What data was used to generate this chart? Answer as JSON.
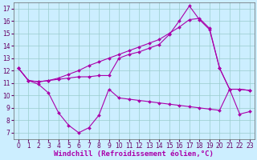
{
  "title": "",
  "xlabel": "Windchill (Refroidissement éolien,°C)",
  "ylabel": "",
  "bg_color": "#cceeff",
  "line_color": "#aa00aa",
  "grid_color": "#99cccc",
  "xlim": [
    -0.5,
    23.5
  ],
  "ylim": [
    6.5,
    17.5
  ],
  "xticks": [
    0,
    1,
    2,
    3,
    4,
    5,
    6,
    7,
    8,
    9,
    10,
    11,
    12,
    13,
    14,
    15,
    16,
    17,
    18,
    19,
    20,
    21,
    22,
    23
  ],
  "yticks": [
    7,
    8,
    9,
    10,
    11,
    12,
    13,
    14,
    15,
    16,
    17
  ],
  "curve_bottom_x": [
    0,
    1,
    2,
    3,
    4,
    5,
    6,
    7,
    8,
    9,
    10,
    11,
    12,
    13,
    14,
    15,
    16,
    17,
    18,
    19,
    20,
    21,
    22,
    23
  ],
  "curve_bottom_y": [
    12.2,
    11.2,
    10.9,
    10.2,
    8.6,
    7.6,
    7.0,
    7.4,
    8.4,
    10.5,
    9.8,
    9.7,
    9.6,
    9.5,
    9.4,
    9.3,
    9.2,
    9.1,
    9.0,
    8.9,
    8.8,
    10.5,
    8.5,
    8.7
  ],
  "curve_mid_x": [
    0,
    1,
    2,
    3,
    4,
    5,
    6,
    7,
    8,
    9,
    10,
    11,
    12,
    13,
    14,
    15,
    16,
    17,
    18,
    19,
    20,
    21,
    22,
    23
  ],
  "curve_mid_y": [
    12.2,
    11.2,
    11.1,
    11.2,
    11.3,
    11.4,
    11.5,
    11.5,
    11.6,
    11.6,
    13.0,
    13.3,
    13.5,
    13.8,
    14.1,
    14.9,
    16.0,
    17.2,
    16.1,
    15.3,
    12.2,
    10.5,
    10.5,
    10.4
  ],
  "curve_top_x": [
    0,
    1,
    2,
    3,
    4,
    5,
    6,
    7,
    8,
    9,
    10,
    11,
    12,
    13,
    14,
    15,
    16,
    17,
    18,
    19,
    20,
    21,
    22,
    23
  ],
  "curve_top_y": [
    12.2,
    11.2,
    11.1,
    11.2,
    11.4,
    11.7,
    12.0,
    12.4,
    12.7,
    13.0,
    13.3,
    13.6,
    13.9,
    14.2,
    14.5,
    15.0,
    15.5,
    16.1,
    16.2,
    15.4,
    12.2,
    10.5,
    10.5,
    10.4
  ],
  "xlabel_fontsize": 6.5,
  "tick_fontsize": 5.5,
  "markersize": 2.0,
  "linewidth": 0.8
}
